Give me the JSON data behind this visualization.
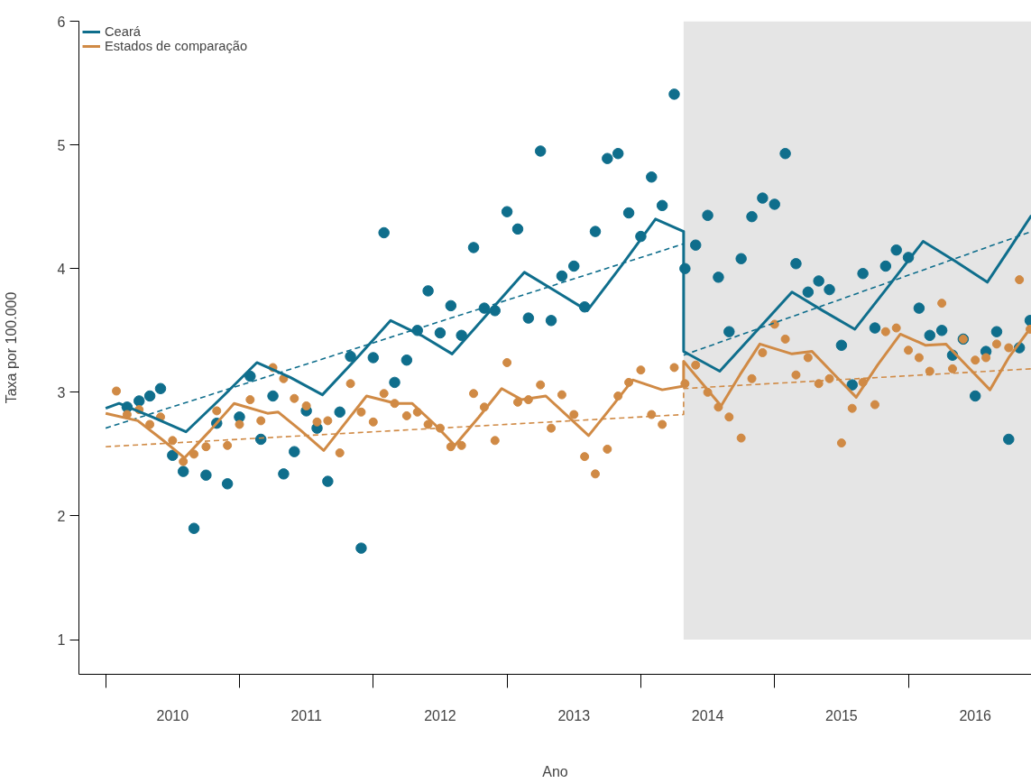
{
  "chart_data": {
    "type": "scatter",
    "xlabel": "Ano",
    "ylabel": "Taxa por 100.000",
    "xlim": [
      2009.8,
      2016.92
    ],
    "ylim": [
      0.72,
      6.0
    ],
    "yticks": [
      1,
      2,
      3,
      4,
      5,
      6
    ],
    "xticks": [
      {
        "value": 2010,
        "label": null
      },
      {
        "value": 2011,
        "label": null
      },
      {
        "value": 2012,
        "label": null
      },
      {
        "value": 2013,
        "label": null
      },
      {
        "value": 2014,
        "label": null
      },
      {
        "value": 2015,
        "label": null
      },
      {
        "value": 2016,
        "label": null
      },
      {
        "value": 2010.5,
        "label": "2010"
      },
      {
        "value": 2011.5,
        "label": "2011"
      },
      {
        "value": 2012.5,
        "label": "2012"
      },
      {
        "value": 2013.5,
        "label": "2013"
      },
      {
        "value": 2014.5,
        "label": "2014"
      },
      {
        "value": 2015.5,
        "label": "2015"
      },
      {
        "value": 2016.5,
        "label": "2016"
      }
    ],
    "grid": false,
    "legend": "top left",
    "bands": [
      {
        "axis": "x",
        "from": 2014.32,
        "to": 2016.92,
        "color": "#e5e5e5"
      }
    ],
    "x": [
      2010.08,
      2010.16,
      2010.25,
      2010.33,
      2010.41,
      2010.5,
      2010.58,
      2010.66,
      2010.75,
      2010.83,
      2010.91,
      2011.0,
      2011.08,
      2011.16,
      2011.25,
      2011.33,
      2011.41,
      2011.5,
      2011.58,
      2011.66,
      2011.75,
      2011.83,
      2011.91,
      2012.0,
      2012.08,
      2012.16,
      2012.25,
      2012.33,
      2012.41,
      2012.5,
      2012.58,
      2012.66,
      2012.75,
      2012.83,
      2012.91,
      2013.0,
      2013.08,
      2013.16,
      2013.25,
      2013.33,
      2013.41,
      2013.5,
      2013.58,
      2013.66,
      2013.75,
      2013.83,
      2013.91,
      2014.0,
      2014.08,
      2014.16,
      2014.25,
      2014.33,
      2014.41,
      2014.5,
      2014.58,
      2014.66,
      2014.75,
      2014.83,
      2014.91,
      2015.0,
      2015.08,
      2015.16,
      2015.25,
      2015.33,
      2015.41,
      2015.5,
      2015.58,
      2015.66,
      2015.75,
      2015.83,
      2015.91,
      2016.0,
      2016.08,
      2016.16,
      2016.25,
      2016.33,
      2016.41,
      2016.5,
      2016.58,
      2016.66,
      2016.75,
      2016.83,
      2016.91
    ],
    "series": [
      {
        "marker": "circle",
        "color": "#0f6e8c",
        "values": [
          null,
          2.88,
          2.93,
          2.97,
          3.03,
          2.49,
          2.36,
          1.9,
          2.33,
          2.75,
          2.26,
          2.8,
          3.13,
          2.62,
          2.97,
          2.34,
          2.52,
          2.85,
          2.71,
          2.28,
          2.84,
          3.29,
          1.74,
          3.28,
          4.29,
          3.08,
          3.26,
          3.5,
          3.82,
          3.48,
          3.7,
          3.46,
          4.17,
          3.68,
          3.66,
          4.46,
          4.32,
          3.6,
          4.95,
          3.58,
          3.94,
          4.02,
          3.69,
          4.3,
          4.89,
          4.93,
          4.45,
          4.26,
          4.74,
          4.51,
          5.41,
          4.0,
          4.19,
          4.43,
          3.93,
          3.49,
          4.08,
          4.42,
          4.57,
          4.52,
          4.93,
          4.04,
          3.81,
          3.9,
          3.83,
          3.38,
          3.06,
          3.96,
          3.52,
          4.02,
          4.15,
          4.09,
          3.68,
          3.46,
          3.5,
          3.3,
          3.43,
          2.97,
          3.33,
          3.49,
          2.62,
          3.36,
          3.58
        ]
      },
      {
        "marker": "circle",
        "color": "#d08a45",
        "values": [
          3.01,
          2.82,
          2.86,
          2.74,
          2.8,
          2.61,
          2.44,
          2.5,
          2.56,
          2.85,
          2.57,
          2.74,
          2.94,
          2.77,
          3.2,
          3.11,
          2.95,
          2.89,
          2.76,
          2.77,
          2.51,
          3.07,
          2.84,
          2.76,
          2.99,
          2.91,
          2.81,
          2.84,
          2.74,
          2.71,
          2.56,
          2.57,
          2.99,
          2.88,
          2.61,
          3.24,
          2.92,
          2.94,
          3.06,
          2.71,
          2.98,
          2.82,
          2.48,
          2.34,
          2.54,
          2.97,
          3.08,
          3.18,
          2.82,
          2.74,
          3.2,
          3.07,
          3.22,
          3.0,
          2.88,
          2.8,
          2.63,
          3.11,
          3.32,
          3.55,
          3.43,
          3.14,
          3.28,
          3.07,
          3.11,
          2.59,
          2.87,
          3.08,
          2.9,
          3.49,
          3.52,
          3.34,
          3.28,
          3.17,
          3.72,
          3.19,
          3.43,
          3.26,
          3.28,
          3.39,
          3.36,
          3.91,
          3.51
        ]
      },
      {
        "type": "line",
        "name": "Ceará",
        "color": "#0f6e8c",
        "line_style": "solid",
        "x": [
          2010.0,
          2010.1,
          2010.35,
          2010.6,
          2010.86,
          2011.13,
          2011.38,
          2011.62,
          2011.88,
          2012.13,
          2012.36,
          2012.59,
          2012.86,
          2013.13,
          2013.36,
          2013.6,
          2013.86,
          2014.11,
          2014.32,
          2014.32,
          2014.59,
          2014.86,
          2015.13,
          2015.36,
          2015.6,
          2015.86,
          2016.11,
          2016.35,
          2016.59,
          2016.75,
          2016.92
        ],
        "values": [
          2.87,
          2.91,
          2.8,
          2.68,
          2.95,
          3.24,
          3.12,
          2.98,
          3.28,
          3.58,
          3.46,
          3.31,
          3.64,
          3.97,
          3.82,
          3.66,
          4.03,
          4.4,
          4.3,
          3.33,
          3.17,
          3.49,
          3.81,
          3.66,
          3.51,
          3.87,
          4.22,
          4.06,
          3.89,
          4.15,
          4.43
        ]
      },
      {
        "type": "line",
        "color": "#0f6e8c",
        "line_style": "dashed",
        "x": [
          2010.0,
          2014.32
        ],
        "values": [
          2.71,
          4.2
        ]
      },
      {
        "type": "line",
        "color": "#0f6e8c",
        "line_style": "dashed",
        "x": [
          2014.32,
          2016.92
        ],
        "values": [
          3.3,
          4.3
        ]
      },
      {
        "type": "line",
        "name": "Estados de comparação",
        "color": "#d08a45",
        "line_style": "solid",
        "x": [
          2010.0,
          2010.24,
          2010.42,
          2010.59,
          2010.78,
          2010.96,
          2011.21,
          2011.29,
          2011.46,
          2011.63,
          2011.79,
          2011.95,
          2012.17,
          2012.29,
          2012.46,
          2012.61,
          2012.79,
          2012.96,
          2013.11,
          2013.29,
          2013.45,
          2013.61,
          2013.78,
          2013.94,
          2014.16,
          2014.32,
          2014.32,
          2014.46,
          2014.6,
          2014.74,
          2014.89,
          2015.13,
          2015.28,
          2015.44,
          2015.61,
          2015.77,
          2015.94,
          2016.13,
          2016.28,
          2016.44,
          2016.61,
          2016.75,
          2016.92
        ],
        "values": [
          2.83,
          2.77,
          2.62,
          2.47,
          2.69,
          2.91,
          2.83,
          2.84,
          2.69,
          2.53,
          2.75,
          2.97,
          2.91,
          2.91,
          2.74,
          2.57,
          2.8,
          3.03,
          2.94,
          2.97,
          2.81,
          2.65,
          2.88,
          3.1,
          3.02,
          3.05,
          3.25,
          3.07,
          2.89,
          3.14,
          3.39,
          3.31,
          3.33,
          3.15,
          2.96,
          3.22,
          3.47,
          3.38,
          3.39,
          3.21,
          3.02,
          3.28,
          3.53
        ]
      },
      {
        "type": "line",
        "color": "#d08a45",
        "line_style": "dashed",
        "x": [
          2010.0,
          2014.32,
          2014.32,
          2016.92
        ],
        "values": [
          2.56,
          2.82,
          3.03,
          3.19
        ]
      }
    ]
  }
}
